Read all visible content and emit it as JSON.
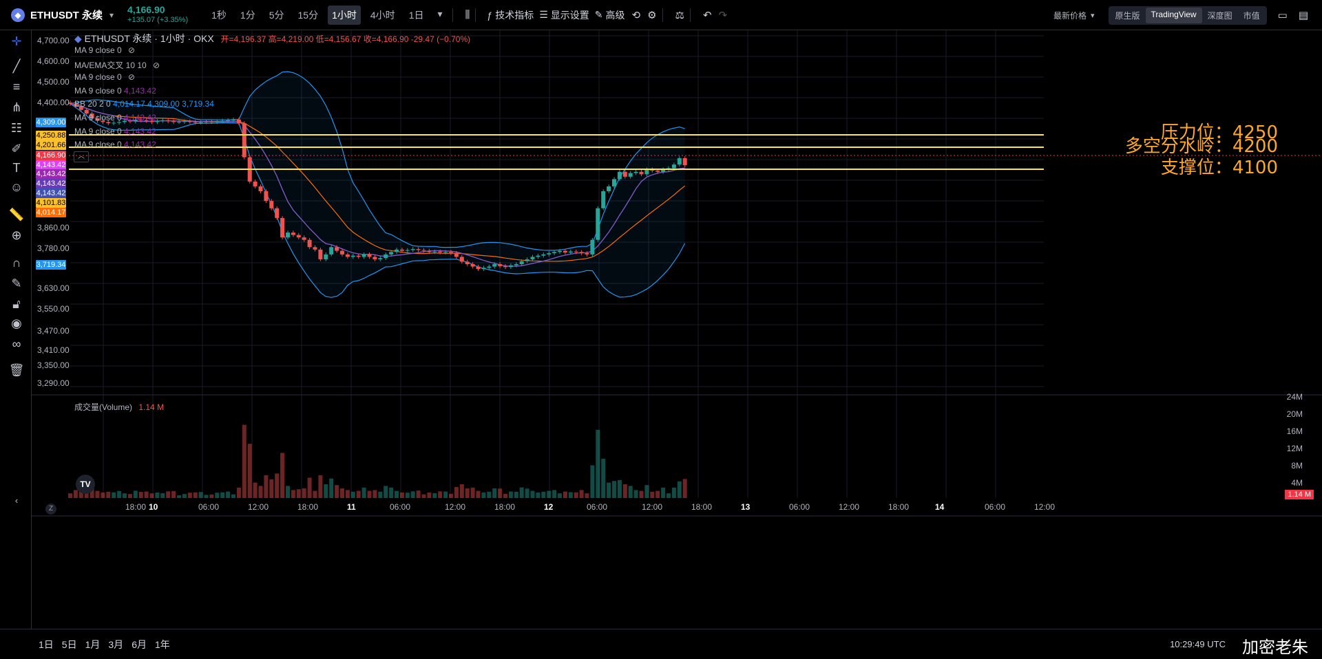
{
  "header": {
    "symbol": "ETHUSDT 永续",
    "price": "4,166.90",
    "change": "+135.07 (+3.35%)",
    "timeframes": [
      "1秒",
      "1分",
      "5分",
      "15分",
      "1小时",
      "4小时",
      "1日"
    ],
    "active_timeframe": "1小时",
    "indicators_label": "技术指标",
    "display_label": "显示设置",
    "advanced_label": "高级",
    "price_type": "最新价格",
    "views": [
      "原生版",
      "TradingView",
      "深度图",
      "市值"
    ],
    "active_view": "TradingView"
  },
  "legend": {
    "title": "ETHUSDT 永续 · 1小时 · OKX",
    "ohlc": "开=4,196.37 高=4,219.00 低=4,156.67 收=4,166.90 -29.47 (−0.70%)",
    "rows": [
      {
        "label": "MA 9 close 0",
        "value": ""
      },
      {
        "label": "MA/EMA交叉 10 10",
        "value": ""
      },
      {
        "label": "MA 9 close 0",
        "value": ""
      },
      {
        "label": "MA 9 close 0",
        "value": "4,143.42"
      },
      {
        "label": "BB 20 2 0",
        "value": "4,014.17  4,309.00  3,719.34"
      },
      {
        "label": "MA 9 close 0",
        "value": "4,143.42"
      },
      {
        "label": "MA 9 close 0",
        "value": "4,143.42"
      },
      {
        "label": "MA 9 close 0",
        "value": "4,143.42"
      }
    ],
    "volume_label": "成交量(Volume)",
    "volume_value": "1.14 M"
  },
  "price_axis": [
    "4,700.00",
    "4,600.00",
    "4,500.00",
    "4,400.00",
    "3,860.00",
    "3,780.00",
    "3,630.00",
    "3,550.00",
    "3,470.00",
    "3,410.00",
    "3,350.00",
    "3,290.00"
  ],
  "price_tags": [
    {
      "v": "4,309.00",
      "c": "#2196f3"
    },
    {
      "v": "4,250.88",
      "c": "#fbc02d"
    },
    {
      "v": "4,201.66",
      "c": "#fbc02d"
    },
    {
      "v": "4,166.90",
      "c": "#f23645"
    },
    {
      "v": "4,143.42",
      "c": "#e040fb"
    },
    {
      "v": "4,143.42",
      "c": "#9c27b0"
    },
    {
      "v": "4,143.42",
      "c": "#673ab7"
    },
    {
      "v": "4,143.42",
      "c": "#3f51b5"
    },
    {
      "v": "4,101.83",
      "c": "#fbc02d"
    },
    {
      "v": "4,014.17",
      "c": "#ff6d00"
    },
    {
      "v": "3,719.34",
      "c": "#2196f3"
    }
  ],
  "levels": [
    {
      "label": "压力位：4250"
    },
    {
      "label": "多空分水岭：4200"
    },
    {
      "label": "支撑位：4100"
    }
  ],
  "volume_axis": [
    "24M",
    "20M",
    "16M",
    "12M",
    "8M",
    "4M"
  ],
  "volume_tag": "1.14 M",
  "time_axis": [
    "18:00",
    "10",
    "06:00",
    "12:00",
    "18:00",
    "11",
    "06:00",
    "12:00",
    "18:00",
    "12",
    "06:00",
    "12:00",
    "18:00",
    "13",
    "06:00",
    "12:00",
    "18:00",
    "14",
    "06:00",
    "12:00"
  ],
  "ranges": [
    "1日",
    "5日",
    "1月",
    "3月",
    "6月",
    "1年"
  ],
  "clock": "10:29:49 UTC",
  "watermark": "加密老朱",
  "colors": {
    "up": "#26a69a",
    "down": "#ef5350",
    "level": "#ffeb3b"
  }
}
